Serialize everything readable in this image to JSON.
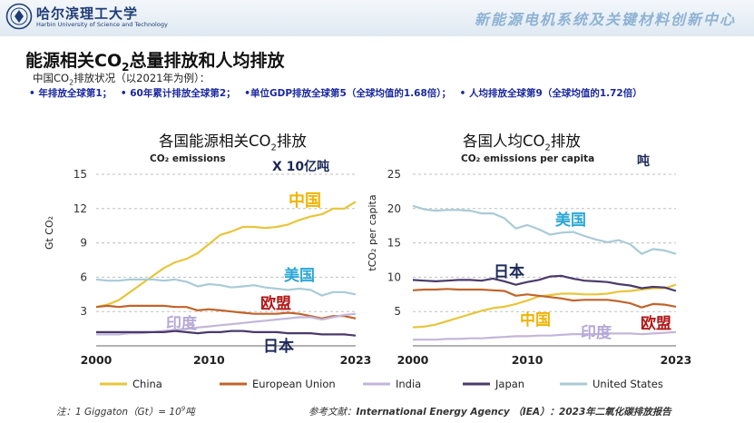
{
  "header": {
    "logo_cn": "哈尔滨理工大学",
    "logo_en": "Harbin University of Science and Technology",
    "center_title": "新能源电机系统及关键材料创新中心"
  },
  "slide": {
    "title_pre": "能源相关CO",
    "title_sub": "2",
    "title_post": "总量排放和人均排放",
    "subtitle_pre": "中国CO",
    "subtitle_sub": "2",
    "subtitle_post": "排放状况（以2021年为例）：",
    "facts": [
      "• 年排放全球第1；",
      "• 60年累计排放全球第2；",
      "•单位GDP排放全球第5（全球均值的1.68倍）；",
      "• 人均排放全球第9（全球均值的1.72倍）"
    ]
  },
  "colors": {
    "China": "#e8c53a",
    "European Union": "#c0642a",
    "India": "#c3b6d8",
    "Japan": "#4a3a6a",
    "United States": "#a9cbd6",
    "label_blue": "#1e6fc0",
    "label_red": "#b01818",
    "label_navy": "#1c2a5a",
    "label_yellow": "#f0b400",
    "label_cyan": "#2ba7d6",
    "label_lilac": "#b6a8d8"
  },
  "chart_data": [
    {
      "type": "line",
      "chart_title_pre": "各国能源相关CO",
      "chart_title_sub": "2",
      "chart_title_post": "排放",
      "title": "CO₂ emissions",
      "unit_label": "X 10亿吨",
      "ylabel": "Gt CO₂",
      "ylim": [
        0,
        15
      ],
      "yticks": [
        3,
        6,
        9,
        12,
        15
      ],
      "xlim": [
        2000,
        2023
      ],
      "xticks": [
        2000,
        2010,
        2023
      ],
      "x": [
        2000,
        2001,
        2002,
        2003,
        2004,
        2005,
        2006,
        2007,
        2008,
        2009,
        2010,
        2011,
        2012,
        2013,
        2014,
        2015,
        2016,
        2017,
        2018,
        2019,
        2020,
        2021,
        2022,
        2023
      ],
      "series": [
        {
          "name": "China",
          "label": "中国",
          "values": [
            3.4,
            3.6,
            4.0,
            4.7,
            5.4,
            6.1,
            6.8,
            7.3,
            7.6,
            8.1,
            8.9,
            9.7,
            10.0,
            10.4,
            10.4,
            10.3,
            10.4,
            10.6,
            11.0,
            11.3,
            11.5,
            12.0,
            12.0,
            12.6
          ]
        },
        {
          "name": "European Union",
          "label": "欧盟",
          "values": [
            3.4,
            3.5,
            3.4,
            3.5,
            3.5,
            3.5,
            3.5,
            3.4,
            3.4,
            3.1,
            3.2,
            3.1,
            3.0,
            2.9,
            2.8,
            2.8,
            2.8,
            2.9,
            2.8,
            2.6,
            2.4,
            2.6,
            2.6,
            2.4
          ]
        },
        {
          "name": "India",
          "label": "印度",
          "values": [
            1.0,
            1.0,
            1.0,
            1.1,
            1.1,
            1.2,
            1.3,
            1.4,
            1.5,
            1.6,
            1.7,
            1.8,
            1.9,
            2.0,
            2.1,
            2.2,
            2.3,
            2.4,
            2.5,
            2.5,
            2.3,
            2.5,
            2.7,
            2.8
          ]
        },
        {
          "name": "Japan",
          "label": "日本",
          "values": [
            1.2,
            1.2,
            1.2,
            1.2,
            1.2,
            1.2,
            1.2,
            1.3,
            1.2,
            1.1,
            1.2,
            1.2,
            1.3,
            1.3,
            1.2,
            1.2,
            1.2,
            1.1,
            1.1,
            1.1,
            1.0,
            1.0,
            1.0,
            0.9
          ]
        },
        {
          "name": "United States",
          "label": "美国",
          "values": [
            5.8,
            5.7,
            5.7,
            5.8,
            5.8,
            5.8,
            5.7,
            5.8,
            5.6,
            5.2,
            5.4,
            5.3,
            5.1,
            5.2,
            5.3,
            5.1,
            5.0,
            4.9,
            5.0,
            4.9,
            4.4,
            4.7,
            4.7,
            4.5
          ]
        }
      ]
    },
    {
      "type": "line",
      "chart_title_pre": "各国人均CO",
      "chart_title_sub": "2",
      "chart_title_post": "排放",
      "title": "CO₂ emissions per capita",
      "unit_label": "吨",
      "ylabel": "tCO₂ per capita",
      "ylim": [
        0,
        25
      ],
      "yticks": [
        5,
        10,
        15,
        20,
        25
      ],
      "xlim": [
        2000,
        2023
      ],
      "xticks": [
        2000,
        2010,
        2023
      ],
      "x": [
        2000,
        2001,
        2002,
        2003,
        2004,
        2005,
        2006,
        2007,
        2008,
        2009,
        2010,
        2011,
        2012,
        2013,
        2014,
        2015,
        2016,
        2017,
        2018,
        2019,
        2020,
        2021,
        2022,
        2023
      ],
      "series": [
        {
          "name": "China",
          "label": "中国",
          "values": [
            2.7,
            2.8,
            3.1,
            3.6,
            4.1,
            4.6,
            5.1,
            5.5,
            5.7,
            6.1,
            6.6,
            7.2,
            7.4,
            7.6,
            7.6,
            7.5,
            7.5,
            7.6,
            7.9,
            8.0,
            8.2,
            8.4,
            8.4,
            8.9
          ]
        },
        {
          "name": "European Union",
          "label": "欧盟",
          "values": [
            8.1,
            8.2,
            8.2,
            8.3,
            8.2,
            8.2,
            8.2,
            8.1,
            8.0,
            7.3,
            7.5,
            7.3,
            7.1,
            6.9,
            6.6,
            6.7,
            6.7,
            6.7,
            6.5,
            6.2,
            5.6,
            6.1,
            6.0,
            5.7
          ]
        },
        {
          "name": "India",
          "label": "印度",
          "values": [
            0.9,
            0.9,
            0.9,
            1.0,
            1.0,
            1.1,
            1.1,
            1.2,
            1.3,
            1.4,
            1.4,
            1.5,
            1.5,
            1.6,
            1.7,
            1.7,
            1.7,
            1.8,
            1.8,
            1.8,
            1.7,
            1.8,
            1.9,
            2.0
          ]
        },
        {
          "name": "Japan",
          "label": "日本",
          "values": [
            9.6,
            9.5,
            9.4,
            9.5,
            9.6,
            9.6,
            9.5,
            9.8,
            9.4,
            8.9,
            9.3,
            9.6,
            10.1,
            10.2,
            9.8,
            9.5,
            9.4,
            9.3,
            9.0,
            8.8,
            8.4,
            8.6,
            8.5,
            8.0
          ]
        },
        {
          "name": "United States",
          "label": "美国",
          "values": [
            20.4,
            19.9,
            19.7,
            19.8,
            19.8,
            19.7,
            19.3,
            19.3,
            18.6,
            17.1,
            17.6,
            17.0,
            16.2,
            16.5,
            16.6,
            16.0,
            15.5,
            15.1,
            15.4,
            14.8,
            13.4,
            14.1,
            13.9,
            13.4
          ]
        }
      ]
    }
  ],
  "legend": [
    "China",
    "European Union",
    "India",
    "Japan",
    "United States"
  ],
  "footer": {
    "note_pre": "注：1 Giggaton（Gt）= 10",
    "note_sup": "9",
    "note_post": "吨",
    "ref_label": "参考文献：",
    "ref_source": "International Energy Agency （IEA）：",
    "ref_title": "2023年二氧化碳排放报告"
  }
}
